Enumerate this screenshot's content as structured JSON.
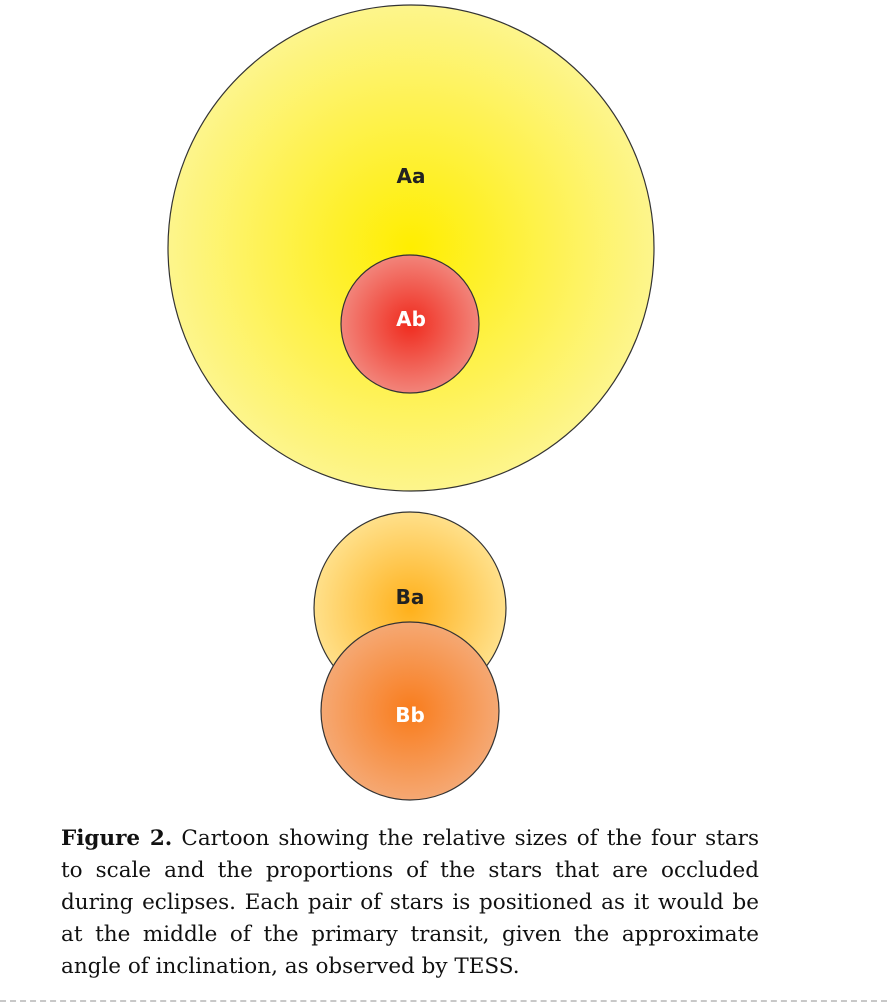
{
  "stars": {
    "aa": {
      "label": "Aa",
      "center_color": "#ffee00",
      "edge_color": "#fdf58c"
    },
    "ab": {
      "label": "Ab",
      "center_color": "#f02b1e",
      "edge_color": "#f2847a"
    },
    "ba": {
      "label": "Ba",
      "center_color": "#ffb01a",
      "edge_color": "#ffe08a"
    },
    "bb": {
      "label": "Bb",
      "center_color": "#f97c1c",
      "edge_color": "#f5a873"
    }
  },
  "caption": {
    "figure_label": "Figure 2.",
    "text": "Cartoon showing the relative sizes of the four stars to scale and the proportions of the stars that are occluded during eclipses. Each pair of stars is positioned as it would be at the middle of the primary transit, given the approximate angle of inclination, as observed by TESS."
  }
}
